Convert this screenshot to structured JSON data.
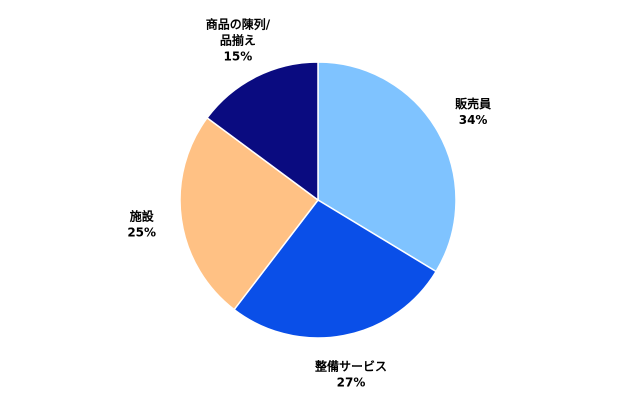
{
  "chart_data": {
    "type": "pie",
    "title": "",
    "start_angle_deg": 0,
    "direction": "clockwise",
    "slices": [
      {
        "label": "販売員",
        "percent_label": "34%",
        "value": 34,
        "color": "#7FC3FF"
      },
      {
        "label": "整備サービス",
        "percent_label": "27%",
        "value": 27,
        "color": "#0A4FE8"
      },
      {
        "label": "施設",
        "percent_label": "25%",
        "value": 25,
        "color": "#FFC184"
      },
      {
        "label": "商品の陳列/\n品揃え",
        "percent_label": "15%",
        "value": 15,
        "color": "#0A0B80"
      }
    ]
  }
}
